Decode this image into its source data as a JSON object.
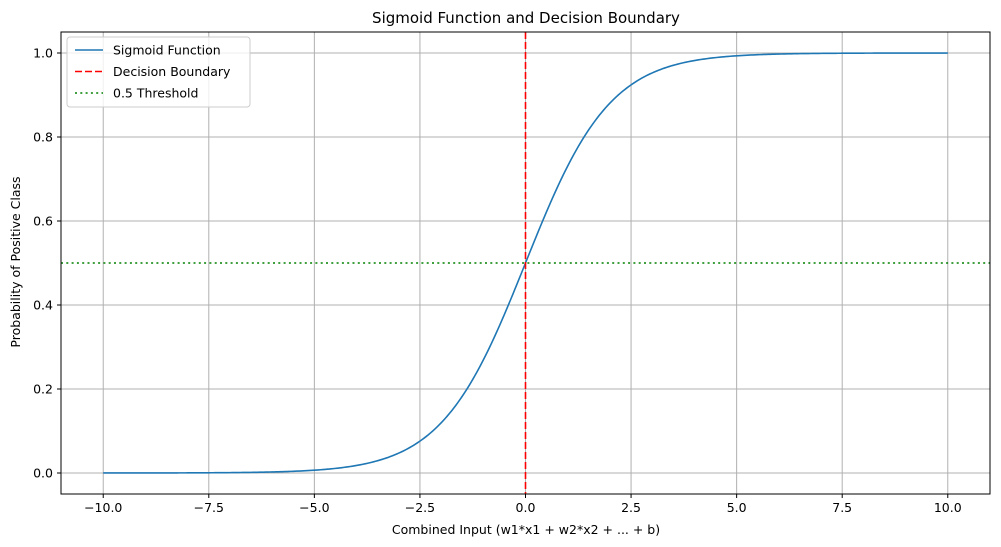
{
  "chart_data": {
    "type": "line",
    "title": "Sigmoid Function and Decision Boundary",
    "xlabel": "Combined Input (w1*x1 + w2*x2 + ... + b)",
    "ylabel": "Probability of Positive Class",
    "xlim": [
      -11,
      11
    ],
    "ylim": [
      -0.05,
      1.05
    ],
    "grid": true,
    "legend_position": "top-left",
    "x_ticks": [
      -10.0,
      -7.5,
      -5.0,
      -2.5,
      0.0,
      2.5,
      5.0,
      7.5,
      10.0
    ],
    "x_tick_labels": [
      "−10.0",
      "−7.5",
      "−5.0",
      "−2.5",
      "0.0",
      "2.5",
      "5.0",
      "7.5",
      "10.0"
    ],
    "y_ticks": [
      0.0,
      0.2,
      0.4,
      0.6,
      0.8,
      1.0
    ],
    "y_tick_labels": [
      "0.0",
      "0.2",
      "0.4",
      "0.6",
      "0.8",
      "1.0"
    ],
    "series": [
      {
        "name": "Sigmoid Function",
        "kind": "curve",
        "color": "#1f77b4",
        "style": "solid",
        "x": [
          -10,
          -9,
          -8,
          -7,
          -6,
          -5,
          -4.5,
          -4,
          -3.5,
          -3,
          -2.5,
          -2,
          -1.5,
          -1,
          -0.5,
          0,
          0.5,
          1,
          1.5,
          2,
          2.5,
          3,
          3.5,
          4,
          4.5,
          5,
          6,
          7,
          8,
          9,
          10
        ],
        "y": [
          5e-05,
          0.00012,
          0.00034,
          0.00091,
          0.00247,
          0.00669,
          0.01099,
          0.01799,
          0.02931,
          0.04743,
          0.07586,
          0.1192,
          0.18243,
          0.26894,
          0.37754,
          0.5,
          0.62246,
          0.73106,
          0.81757,
          0.8808,
          0.92414,
          0.95257,
          0.97069,
          0.98201,
          0.98901,
          0.99331,
          0.99753,
          0.99909,
          0.99966,
          0.99988,
          0.99995
        ]
      },
      {
        "name": "Decision Boundary",
        "kind": "vline",
        "x": 0,
        "color": "#ff0000",
        "style": "dashed"
      },
      {
        "name": "0.5 Threshold",
        "kind": "hline",
        "y": 0.5,
        "color": "#008000",
        "style": "dotted"
      }
    ]
  }
}
